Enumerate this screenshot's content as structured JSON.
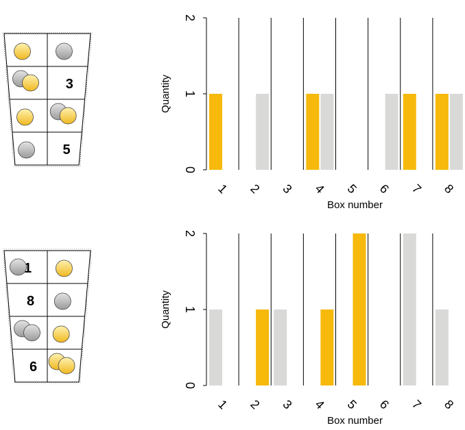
{
  "colors": {
    "yellow": "#f6b90c",
    "gray": "#d9d9d7",
    "ball_yellow_top": "#fff2b0",
    "ball_yellow_bottom": "#f0b820",
    "ball_gray_top": "#e4e4e4",
    "ball_gray_bottom": "#9a9a9a",
    "outline": "#000000"
  },
  "panels": [
    {
      "grid": {
        "cells": [
          {
            "balls": [
              {
                "color": "yellow"
              }
            ],
            "label": ""
          },
          {
            "balls": [
              {
                "color": "gray"
              }
            ],
            "label": ""
          },
          {
            "balls": [
              {
                "color": "gray"
              },
              {
                "color": "yellow"
              }
            ],
            "label": ""
          },
          {
            "balls": [],
            "label": "3"
          },
          {
            "balls": [
              {
                "color": "yellow"
              }
            ],
            "label": ""
          },
          {
            "balls": [
              {
                "color": "gray"
              },
              {
                "color": "yellow"
              }
            ],
            "label": ""
          },
          {
            "balls": [
              {
                "color": "gray"
              }
            ],
            "label": ""
          },
          {
            "balls": [],
            "label": "5"
          }
        ]
      },
      "chart_data": {
        "type": "bar",
        "categories": [
          "1",
          "2",
          "3",
          "4",
          "5",
          "6",
          "7",
          "8"
        ],
        "series": [
          {
            "color": "yellow",
            "values": [
              1,
              0,
              0,
              1,
              0,
              0,
              1,
              1
            ]
          },
          {
            "color": "gray",
            "values": [
              0,
              1,
              0,
              1,
              0,
              1,
              0,
              1
            ]
          }
        ],
        "yticks": [
          "0",
          "1",
          "2"
        ],
        "ylim": [
          0,
          2
        ],
        "xlabel": "Box number",
        "ylabel": "Quantity",
        "grid": "vertical"
      }
    },
    {
      "grid": {
        "cells": [
          {
            "balls": [
              {
                "color": "gray"
              }
            ],
            "label": "1"
          },
          {
            "balls": [
              {
                "color": "yellow"
              }
            ],
            "label": ""
          },
          {
            "balls": [],
            "label": "8"
          },
          {
            "balls": [
              {
                "color": "gray"
              }
            ],
            "label": ""
          },
          {
            "balls": [
              {
                "color": "gray"
              },
              {
                "color": "gray"
              }
            ],
            "label": ""
          },
          {
            "balls": [
              {
                "color": "yellow"
              }
            ],
            "label": ""
          },
          {
            "balls": [],
            "label": "6"
          },
          {
            "balls": [
              {
                "color": "yellow"
              },
              {
                "color": "yellow"
              }
            ],
            "label": ""
          }
        ]
      },
      "chart_data": {
        "type": "bar",
        "categories": [
          "1",
          "2",
          "3",
          "4",
          "5",
          "6",
          "7",
          "8"
        ],
        "series": [
          {
            "color": "gray",
            "values": [
              1,
              0,
              1,
              0,
              0,
              0,
              2,
              1
            ]
          },
          {
            "color": "yellow",
            "values": [
              0,
              1,
              0,
              1,
              2,
              0,
              0,
              0
            ]
          }
        ],
        "yticks": [
          "0",
          "1",
          "2"
        ],
        "ylim": [
          0,
          2
        ],
        "xlabel": "Box number",
        "ylabel": "Quantity",
        "grid": "vertical"
      }
    }
  ]
}
